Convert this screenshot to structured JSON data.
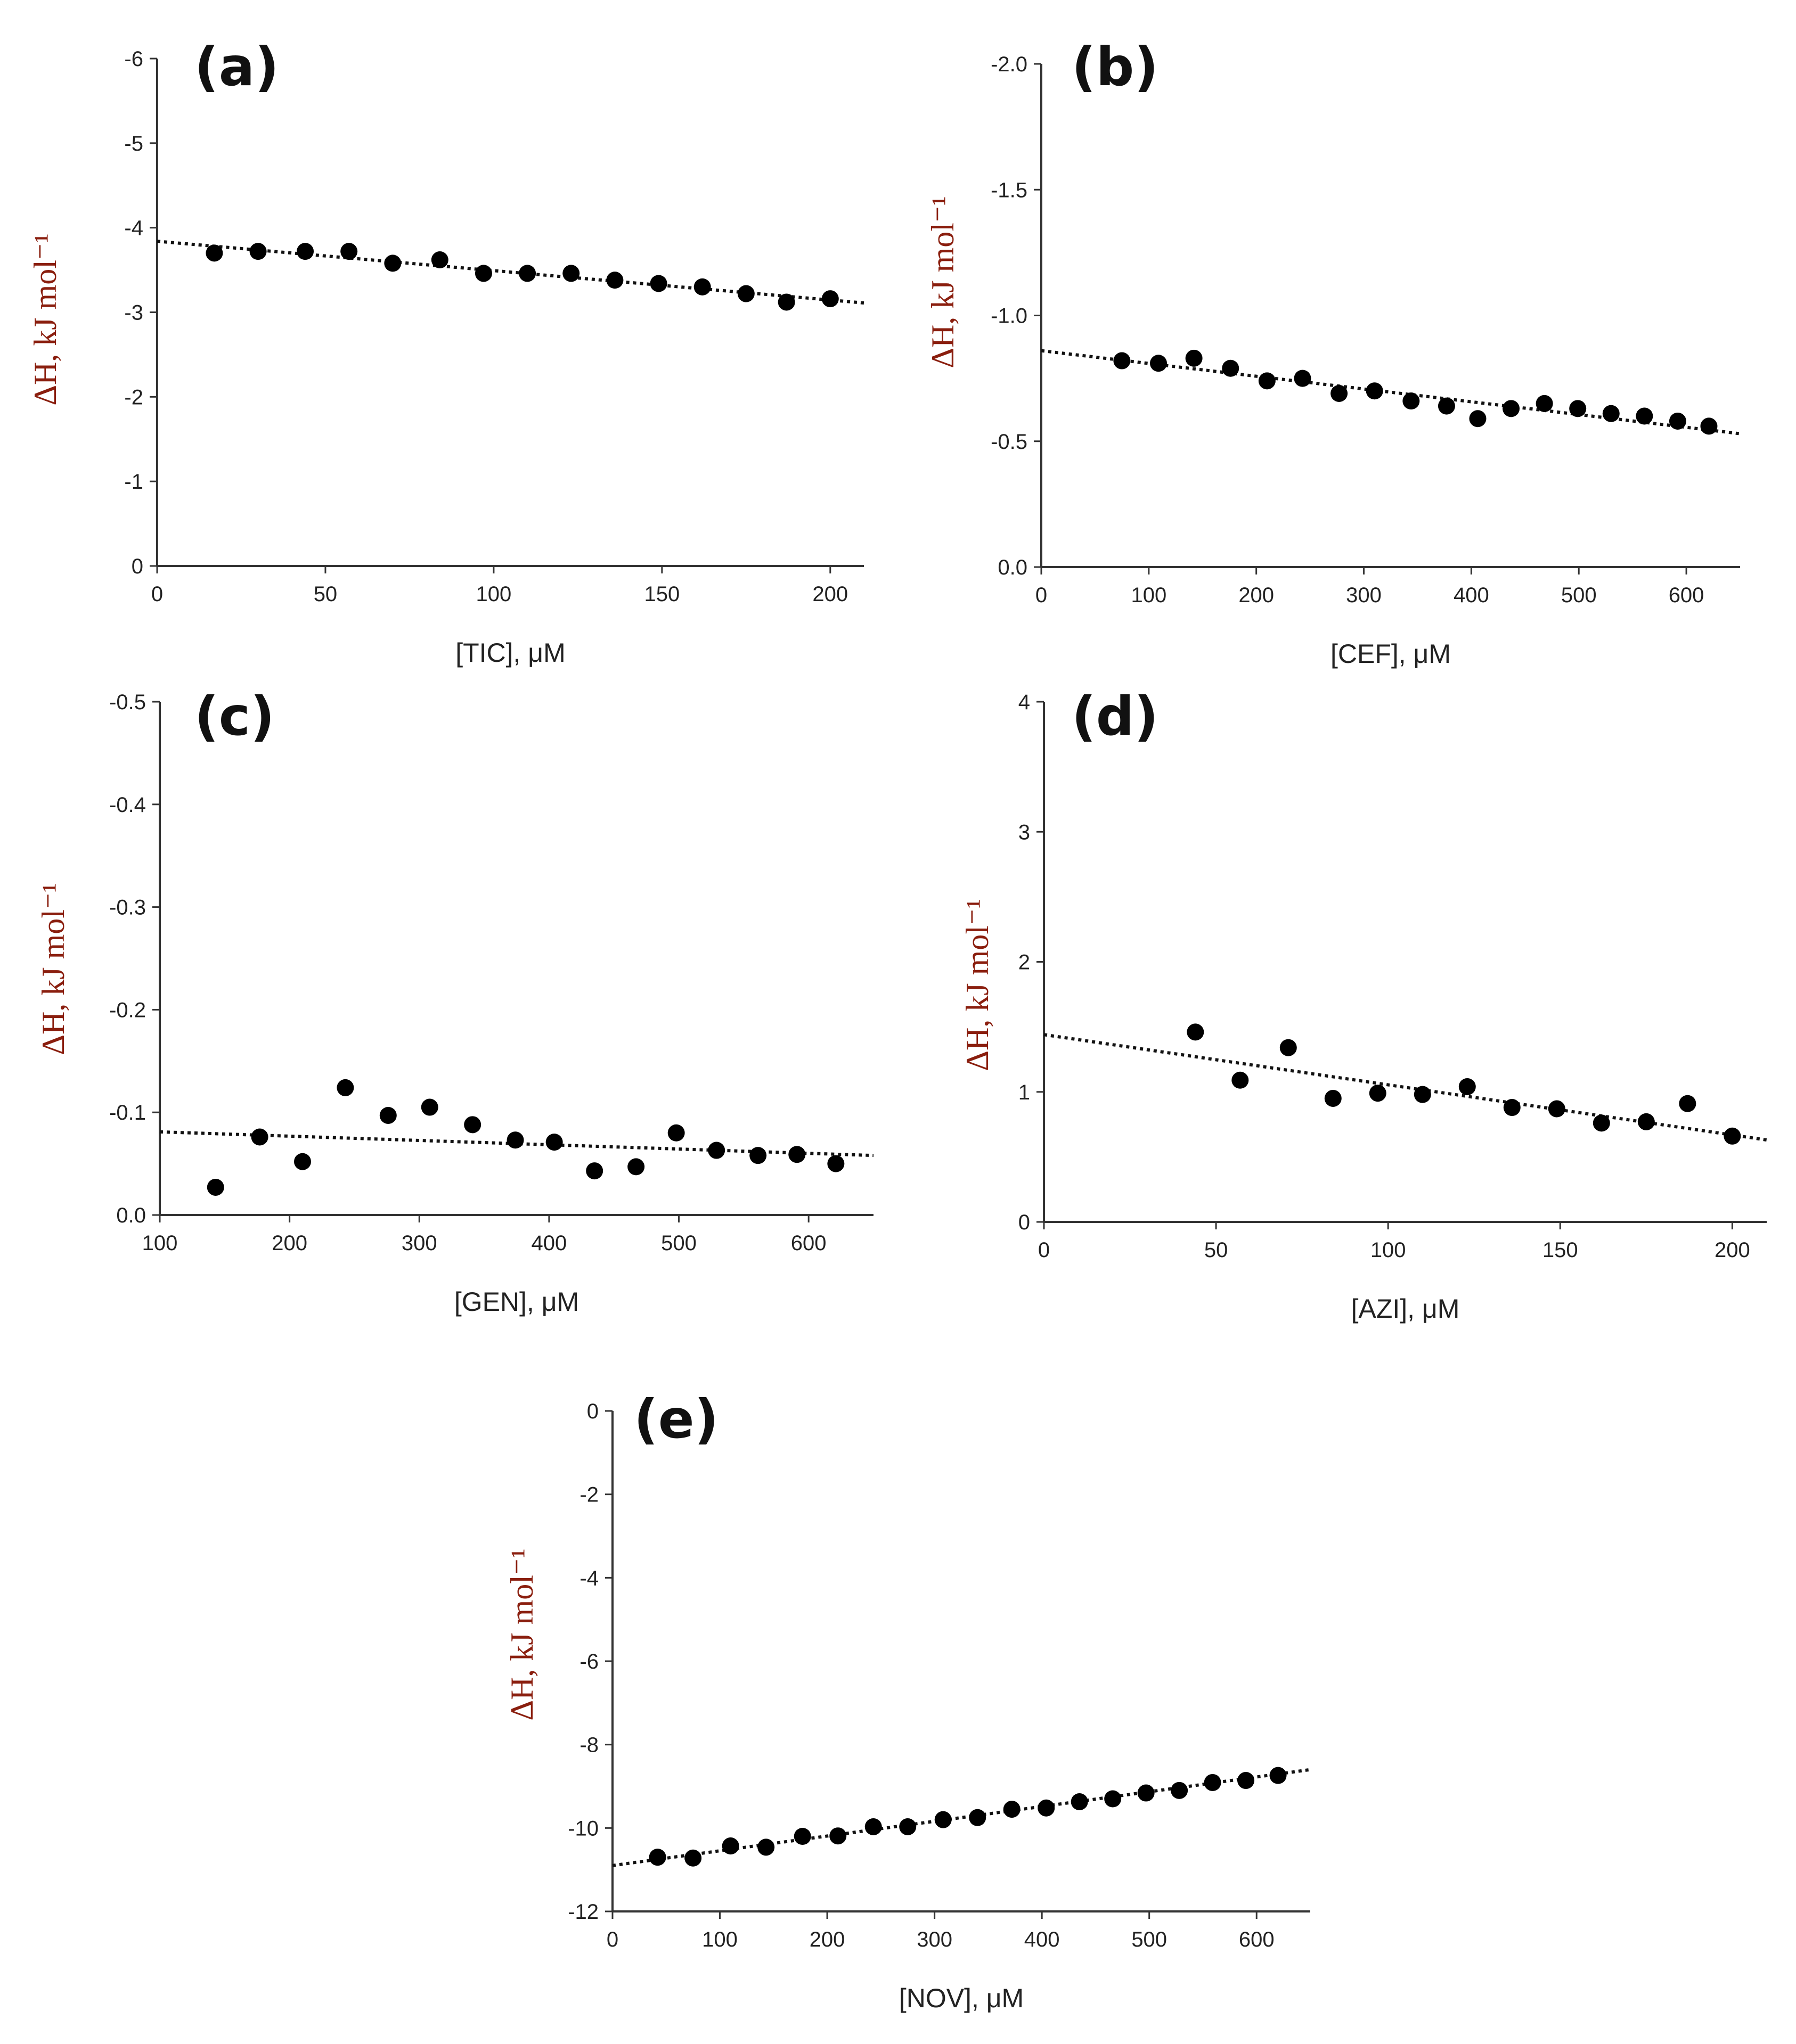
{
  "figure": {
    "colors": {
      "axis": "#333333",
      "point": "#000000",
      "ylabel": "#8a1e0e"
    }
  },
  "chart_data": [
    {
      "panel": "(a)",
      "type": "scatter",
      "xlabel": "[TIC], μM",
      "ylabel": "ΔH, kJ mol⁻¹",
      "xlim": [
        0,
        210
      ],
      "ylim": [
        0,
        6
      ],
      "xticks": [
        0,
        50,
        100,
        150,
        200
      ],
      "xtick_labels": [
        "0",
        "50",
        "100",
        "150",
        "200"
      ],
      "yticks": [
        0,
        1,
        2,
        3,
        4,
        5,
        6
      ],
      "ytick_labels": [
        "0",
        "-1",
        "-2",
        "-3",
        "-4",
        "-5",
        "-6"
      ],
      "x": [
        17,
        30,
        44,
        57,
        70,
        84,
        97,
        110,
        123,
        136,
        149,
        162,
        175,
        187,
        200
      ],
      "y": [
        3.7,
        3.72,
        3.72,
        3.72,
        3.58,
        3.62,
        3.46,
        3.46,
        3.46,
        3.38,
        3.34,
        3.3,
        3.22,
        3.12,
        3.16
      ],
      "trendline": {
        "x": [
          0,
          210
        ],
        "y": [
          3.84,
          3.11
        ]
      }
    },
    {
      "panel": "(b)",
      "type": "scatter",
      "xlabel": "[CEF], μM",
      "ylabel": "ΔH, kJ mol⁻¹",
      "xlim": [
        0,
        650
      ],
      "ylim": [
        0,
        2
      ],
      "xticks": [
        0,
        100,
        200,
        300,
        400,
        500,
        600
      ],
      "xtick_labels": [
        "0",
        "100",
        "200",
        "300",
        "400",
        "500",
        "600"
      ],
      "yticks": [
        0,
        0.5,
        1.0,
        1.5,
        2.0
      ],
      "ytick_labels": [
        "0.0",
        "-0.5",
        "-1.0",
        "-1.5",
        "-2.0"
      ],
      "x": [
        75,
        109,
        142,
        176,
        210,
        243,
        277,
        310,
        344,
        377,
        406,
        437,
        468,
        499,
        530,
        561,
        592,
        621
      ],
      "y": [
        0.82,
        0.81,
        0.83,
        0.79,
        0.74,
        0.75,
        0.69,
        0.7,
        0.66,
        0.64,
        0.59,
        0.63,
        0.65,
        0.63,
        0.61,
        0.6,
        0.58,
        0.56
      ],
      "trendline": {
        "x": [
          0,
          650
        ],
        "y": [
          0.86,
          0.53
        ]
      }
    },
    {
      "panel": "(c)",
      "type": "scatter",
      "xlabel": "[GEN], μM",
      "ylabel": "ΔH, kJ mol⁻¹",
      "xlim": [
        100,
        650
      ],
      "ylim": [
        0,
        0.5
      ],
      "xticks": [
        100,
        200,
        300,
        400,
        500,
        600
      ],
      "xtick_labels": [
        "100",
        "200",
        "300",
        "400",
        "500",
        "600"
      ],
      "yticks": [
        0,
        0.1,
        0.2,
        0.3,
        0.4,
        0.5
      ],
      "ytick_labels": [
        "0.0",
        "-0.1",
        "-0.2",
        "-0.3",
        "-0.4",
        "-0.5"
      ],
      "x": [
        143,
        177,
        210,
        243,
        276,
        308,
        341,
        374,
        404,
        435,
        467,
        498,
        529,
        561,
        591,
        621
      ],
      "y": [
        0.027,
        0.076,
        0.052,
        0.124,
        0.097,
        0.105,
        0.088,
        0.073,
        0.071,
        0.043,
        0.047,
        0.08,
        0.063,
        0.058,
        0.059,
        0.05
      ],
      "trendline": {
        "x": [
          100,
          650
        ],
        "y": [
          0.081,
          0.058
        ]
      }
    },
    {
      "panel": "(d)",
      "type": "scatter",
      "xlabel": "[AZI], μM",
      "ylabel": "ΔH, kJ mol⁻¹",
      "xlim": [
        0,
        210
      ],
      "ylim": [
        0,
        4
      ],
      "xticks": [
        0,
        50,
        100,
        150,
        200
      ],
      "xtick_labels": [
        "0",
        "50",
        "100",
        "150",
        "200"
      ],
      "yticks": [
        0,
        1,
        2,
        3,
        4
      ],
      "ytick_labels": [
        "0",
        "1",
        "2",
        "3",
        "4"
      ],
      "x": [
        44,
        57,
        71,
        84,
        97,
        110,
        123,
        136,
        149,
        162,
        175,
        187,
        200
      ],
      "y": [
        1.46,
        1.09,
        1.34,
        0.95,
        0.99,
        0.98,
        1.04,
        0.88,
        0.87,
        0.76,
        0.77,
        0.91,
        0.66
      ],
      "trendline": {
        "x": [
          0,
          210
        ],
        "y": [
          1.44,
          0.63
        ]
      }
    },
    {
      "panel": "(e)",
      "type": "scatter",
      "xlabel": "[NOV], μM",
      "ylabel": "ΔH, kJ mol⁻¹",
      "xlim": [
        0,
        650
      ],
      "ylim": [
        -12,
        0
      ],
      "xticks": [
        0,
        100,
        200,
        300,
        400,
        500,
        600
      ],
      "xtick_labels": [
        "0",
        "100",
        "200",
        "300",
        "400",
        "500",
        "600"
      ],
      "yticks": [
        0,
        -2,
        -4,
        -6,
        -8,
        -10,
        -12
      ],
      "ytick_labels": [
        "0",
        "-2",
        "-4",
        "-6",
        "-8",
        "-10",
        "-12"
      ],
      "x": [
        42,
        75,
        110,
        143,
        177,
        210,
        243,
        275,
        308,
        340,
        372,
        404,
        435,
        466,
        497,
        528,
        559,
        590,
        620
      ],
      "y": [
        -10.7,
        -10.72,
        -10.43,
        -10.46,
        -10.2,
        -10.19,
        -9.97,
        -9.97,
        -9.8,
        -9.75,
        -9.55,
        -9.52,
        -9.37,
        -9.3,
        -9.16,
        -9.1,
        -8.91,
        -8.86,
        -8.74
      ],
      "trendline": {
        "x": [
          0,
          650
        ],
        "y": [
          -10.9,
          -8.6
        ]
      }
    }
  ]
}
